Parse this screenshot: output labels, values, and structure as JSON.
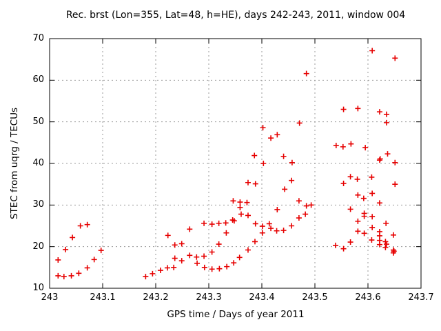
{
  "title": "Rec. brst (Lon=355, Lat=48, h=HE), days 242-243, 2011, window 004",
  "chart_data": {
    "type": "scatter",
    "title": "Rec. brst (Lon=355, Lat=48, h=HE), days 242-243, 2011, window 004",
    "xlabel": "GPS time / Days of year 2011",
    "ylabel": "STEC from uqrg / TECUs",
    "xlim": [
      243,
      243.7
    ],
    "ylim": [
      10,
      70
    ],
    "grid": true,
    "legend": false,
    "marker": "plus",
    "marker_color": "#e60000",
    "grid_color": "#989898",
    "axis_color": "#000000",
    "xticks": [
      {
        "v": 243.0,
        "label": "243"
      },
      {
        "v": 243.1,
        "label": "243.1"
      },
      {
        "v": 243.2,
        "label": "243.2"
      },
      {
        "v": 243.3,
        "label": "243.3"
      },
      {
        "v": 243.4,
        "label": "243.4"
      },
      {
        "v": 243.5,
        "label": "243.5"
      },
      {
        "v": 243.6,
        "label": "243.6"
      },
      {
        "v": 243.7,
        "label": "243.7"
      }
    ],
    "yticks": [
      {
        "v": 10,
        "label": "10"
      },
      {
        "v": 20,
        "label": "20"
      },
      {
        "v": 30,
        "label": "30"
      },
      {
        "v": 40,
        "label": "40"
      },
      {
        "v": 50,
        "label": "50"
      },
      {
        "v": 60,
        "label": "60"
      },
      {
        "v": 70,
        "label": "70"
      }
    ],
    "points": [
      [
        243.016,
        16.8
      ],
      [
        243.016,
        13.0
      ],
      [
        243.027,
        12.8
      ],
      [
        243.03,
        19.3
      ],
      [
        243.041,
        13.0
      ],
      [
        243.043,
        22.2
      ],
      [
        243.055,
        13.6
      ],
      [
        243.058,
        25.0
      ],
      [
        243.071,
        25.3
      ],
      [
        243.071,
        14.9
      ],
      [
        243.084,
        16.9
      ],
      [
        243.097,
        19.1
      ],
      [
        243.181,
        12.8
      ],
      [
        243.194,
        13.5
      ],
      [
        243.209,
        14.3
      ],
      [
        243.222,
        14.9
      ],
      [
        243.234,
        15.0
      ],
      [
        243.223,
        22.7
      ],
      [
        243.236,
        20.4
      ],
      [
        243.249,
        20.7
      ],
      [
        243.236,
        17.2
      ],
      [
        243.249,
        16.6
      ],
      [
        243.264,
        24.2
      ],
      [
        243.264,
        17.9
      ],
      [
        243.277,
        17.5
      ],
      [
        243.278,
        16.0
      ],
      [
        243.291,
        25.6
      ],
      [
        243.291,
        17.7
      ],
      [
        243.292,
        15.0
      ],
      [
        243.306,
        25.4
      ],
      [
        243.306,
        18.7
      ],
      [
        243.306,
        14.6
      ],
      [
        243.319,
        25.6
      ],
      [
        243.319,
        20.6
      ],
      [
        243.32,
        14.7
      ],
      [
        243.332,
        25.7
      ],
      [
        243.333,
        23.3
      ],
      [
        243.334,
        15.2
      ],
      [
        243.345,
        26.4
      ],
      [
        243.348,
        26.2
      ],
      [
        243.347,
        16.1
      ],
      [
        243.358,
        17.4
      ],
      [
        243.346,
        31.0
      ],
      [
        243.359,
        30.7
      ],
      [
        243.372,
        30.6
      ],
      [
        243.359,
        29.4
      ],
      [
        243.361,
        27.8
      ],
      [
        243.374,
        27.5
      ],
      [
        243.374,
        19.2
      ],
      [
        243.374,
        35.4
      ],
      [
        243.388,
        35.1
      ],
      [
        243.388,
        25.5
      ],
      [
        243.387,
        21.2
      ],
      [
        243.386,
        41.9
      ],
      [
        243.401,
        24.9
      ],
      [
        243.401,
        23.3
      ],
      [
        243.402,
        48.6
      ],
      [
        243.403,
        40.0
      ],
      [
        243.414,
        25.5
      ],
      [
        243.417,
        24.4
      ],
      [
        243.417,
        46.1
      ],
      [
        243.428,
        23.8
      ],
      [
        243.429,
        46.9
      ],
      [
        243.429,
        28.9
      ],
      [
        243.441,
        23.9
      ],
      [
        243.441,
        41.7
      ],
      [
        243.443,
        33.8
      ],
      [
        243.456,
        25.0
      ],
      [
        243.456,
        35.9
      ],
      [
        243.457,
        40.2
      ],
      [
        243.47,
        31.0
      ],
      [
        243.47,
        26.9
      ],
      [
        243.471,
        49.7
      ],
      [
        243.482,
        27.8
      ],
      [
        243.484,
        29.8
      ],
      [
        243.484,
        61.6
      ],
      [
        243.493,
        30.0
      ],
      [
        243.539,
        20.3
      ],
      [
        243.54,
        44.3
      ],
      [
        243.553,
        44.0
      ],
      [
        243.554,
        53.0
      ],
      [
        243.554,
        35.2
      ],
      [
        243.554,
        19.5
      ],
      [
        243.567,
        36.8
      ],
      [
        243.567,
        29.0
      ],
      [
        243.567,
        21.1
      ],
      [
        243.568,
        44.7
      ],
      [
        243.58,
        36.2
      ],
      [
        243.581,
        53.2
      ],
      [
        243.581,
        32.4
      ],
      [
        243.581,
        26.1
      ],
      [
        243.581,
        23.7
      ],
      [
        243.592,
        31.6
      ],
      [
        243.593,
        28.0
      ],
      [
        243.593,
        27.3
      ],
      [
        243.593,
        23.2
      ],
      [
        243.595,
        43.8
      ],
      [
        243.607,
        36.7
      ],
      [
        243.608,
        32.8
      ],
      [
        243.608,
        67.1
      ],
      [
        243.608,
        27.2
      ],
      [
        243.608,
        24.6
      ],
      [
        243.607,
        21.6
      ],
      [
        243.622,
        52.4
      ],
      [
        243.635,
        51.8
      ],
      [
        243.635,
        49.8
      ],
      [
        243.623,
        41.1
      ],
      [
        243.637,
        42.3
      ],
      [
        243.622,
        40.8
      ],
      [
        243.622,
        30.5
      ],
      [
        243.634,
        25.6
      ],
      [
        243.622,
        23.6
      ],
      [
        243.622,
        22.6
      ],
      [
        243.622,
        21.5
      ],
      [
        243.622,
        20.5
      ],
      [
        243.633,
        21.2
      ],
      [
        243.635,
        20.6
      ],
      [
        243.633,
        19.8
      ],
      [
        243.648,
        22.8
      ],
      [
        243.648,
        19.2
      ],
      [
        243.649,
        18.9
      ],
      [
        243.648,
        18.5
      ],
      [
        243.651,
        65.3
      ],
      [
        243.651,
        40.2
      ],
      [
        243.651,
        35.0
      ]
    ]
  }
}
